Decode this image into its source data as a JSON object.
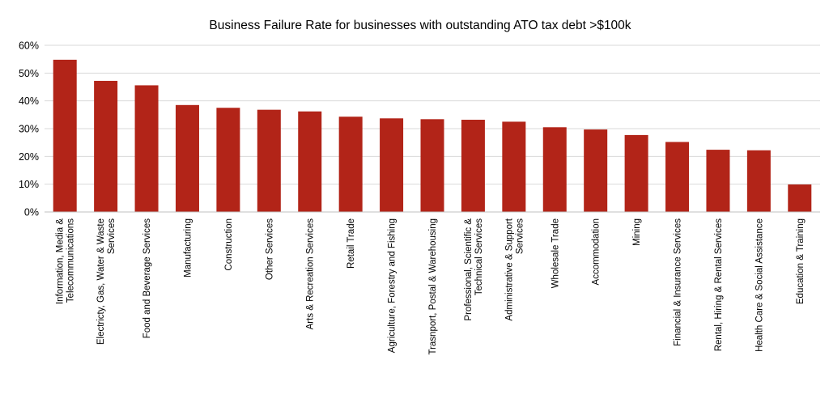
{
  "chart_data": {
    "type": "bar",
    "title": "Business Failure Rate for businesses with outstanding ATO tax debt >$100k",
    "xlabel": "",
    "ylabel": "",
    "ylim": [
      0,
      0.6
    ],
    "yticks": [
      0,
      0.1,
      0.2,
      0.3,
      0.4,
      0.5,
      0.6
    ],
    "ytick_labels": [
      "0%",
      "10%",
      "20%",
      "30%",
      "40%",
      "50%",
      "60%"
    ],
    "grid": true,
    "legend": "none",
    "bar_color": "#b22418",
    "categories": [
      "Information, Media & Telecommunications",
      "Electricty, Gas, Water & Waste Services",
      "Food and Beverage Services",
      "Manufacturing",
      "Construction",
      "Other Services",
      "Arts & Recreation Services",
      "Retail Trade",
      "Agriculture, Forestry and Fishing",
      "Trasnport, Postal & Warehousing",
      "Professional, Scientific & Technical Services",
      "Administrative & Support Services",
      "Wholesale Trade",
      "Accommodation",
      "Mining",
      "Financial & Insurance Services",
      "Rental, Hiring & Rental Services",
      "Health Care & Social Assistance",
      "Education & Training"
    ],
    "category_lines": [
      [
        "Information, Media &",
        "Telecommunications"
      ],
      [
        "Electricty, Gas, Water & Waste",
        "Services"
      ],
      [
        "Food and Beverage Services"
      ],
      [
        "Manufacturing"
      ],
      [
        "Construction"
      ],
      [
        "Other Services"
      ],
      [
        "Arts & Recreation Services"
      ],
      [
        "Retail Trade"
      ],
      [
        "Agriculture, Forestry and Fishing"
      ],
      [
        "Trasnport, Postal & Warehousing"
      ],
      [
        "Professional, Scientific &",
        "Technical Services"
      ],
      [
        "Administrative & Support",
        "Services"
      ],
      [
        "Wholesale Trade"
      ],
      [
        "Accommodation"
      ],
      [
        "Mining"
      ],
      [
        "Financial & Insurance Services"
      ],
      [
        "Rental, Hiring & Rental Services"
      ],
      [
        "Health Care & Social Assistance"
      ],
      [
        "Education & Training"
      ]
    ],
    "values": [
      0.548,
      0.472,
      0.456,
      0.385,
      0.375,
      0.368,
      0.362,
      0.343,
      0.337,
      0.334,
      0.332,
      0.325,
      0.305,
      0.297,
      0.277,
      0.252,
      0.224,
      0.222,
      0.099
    ]
  }
}
